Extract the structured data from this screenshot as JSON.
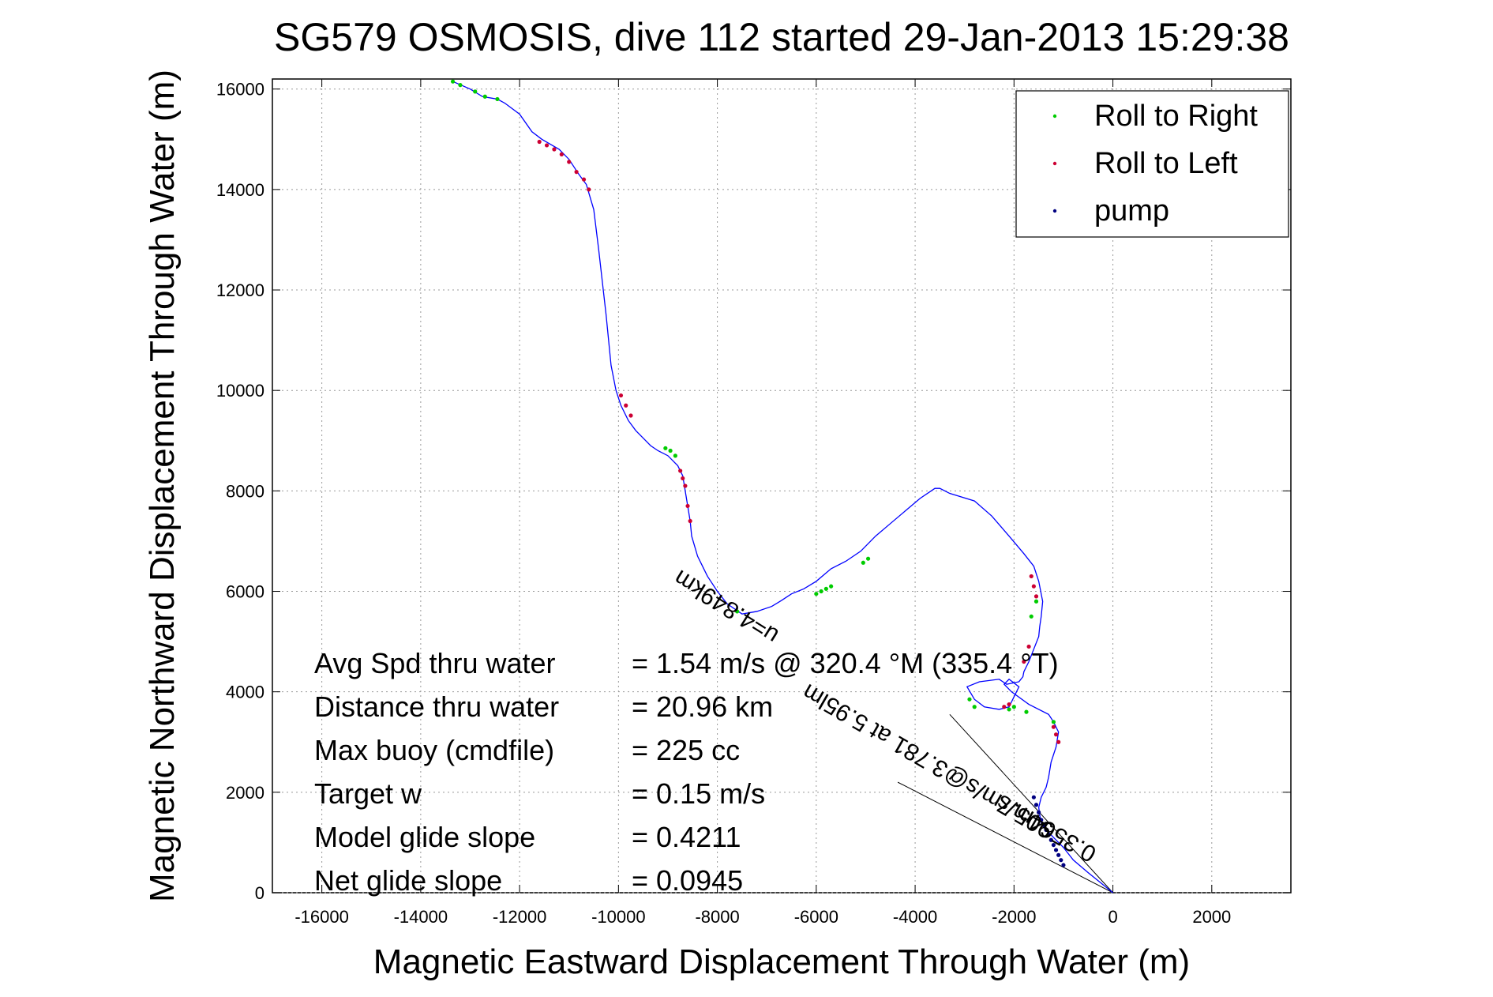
{
  "chart_data": {
    "type": "line",
    "title": "SG579 OSMOSIS, dive 112 started 29-Jan-2013 15:29:38",
    "xlabel": "Magnetic Eastward Displacement Through Water (m)",
    "ylabel": "Magnetic Northward Displacement Through Water (m)",
    "xlim": [
      -17000,
      3600
    ],
    "ylim": [
      0,
      16200
    ],
    "xticks": [
      -16000,
      -14000,
      -12000,
      -10000,
      -8000,
      -6000,
      -4000,
      -2000,
      0,
      2000
    ],
    "yticks": [
      0,
      2000,
      4000,
      6000,
      8000,
      10000,
      12000,
      14000,
      16000
    ],
    "grid": true,
    "legend_position": "top-right",
    "colors": {
      "track": "#0000ff",
      "roll_right": "#00cc00",
      "roll_left": "#cc0033",
      "pump": "#000080",
      "reference_lines": "#000000"
    },
    "series": [
      {
        "name": "track",
        "x": [
          -13350,
          -13000,
          -12750,
          -12450,
          -12300,
          -12000,
          -11750,
          -11550,
          -11200,
          -11000,
          -10800,
          -10650,
          -10500,
          -10400,
          -10250,
          -10150,
          -10050,
          -9950,
          -9800,
          -9650,
          -9500,
          -9350,
          -9200,
          -9000,
          -8800,
          -8700,
          -8650,
          -8600,
          -8550,
          -8520,
          -8400,
          -8200,
          -8000,
          -7800,
          -7500,
          -7200,
          -6900,
          -6700,
          -6500,
          -6250,
          -6000,
          -5700,
          -5400,
          -5100,
          -4800,
          -4500,
          -4200,
          -3900,
          -3600,
          -3500,
          -3300,
          -2800,
          -2450,
          -2100,
          -1800,
          -1600,
          -1500,
          -1420,
          -1450,
          -1480,
          -1500,
          -1620,
          -1700,
          -1800,
          -1820,
          -1900,
          -2150,
          -2300,
          -2700,
          -2950,
          -2800,
          -2600,
          -2300,
          -2100,
          -2000,
          -1900,
          -2100,
          -2200,
          -2050,
          -1700,
          -1300,
          -1200,
          -1100,
          -1150,
          -1250,
          -1300,
          -1350,
          -1450,
          -1500,
          -1480,
          -1450,
          -1400,
          -1200,
          -1000,
          -800,
          -500,
          -250,
          0
        ],
        "y": [
          16150,
          16000,
          15850,
          15800,
          15720,
          15500,
          15150,
          15000,
          14800,
          14600,
          14300,
          14100,
          13600,
          12800,
          11500,
          10500,
          10000,
          9700,
          9400,
          9200,
          9050,
          8900,
          8800,
          8700,
          8500,
          8300,
          8000,
          7700,
          7400,
          7100,
          6700,
          6300,
          6000,
          5750,
          5550,
          5600,
          5700,
          5820,
          5950,
          6050,
          6200,
          6450,
          6600,
          6800,
          7100,
          7350,
          7600,
          7850,
          8050,
          8050,
          7950,
          7800,
          7500,
          7100,
          6750,
          6500,
          6200,
          5800,
          5500,
          5300,
          5100,
          4800,
          4600,
          4400,
          4300,
          4200,
          4150,
          4250,
          4200,
          4100,
          3850,
          3700,
          3650,
          3700,
          3900,
          4100,
          4250,
          4150,
          4000,
          3750,
          3550,
          3400,
          3200,
          2900,
          2600,
          2300,
          2100,
          1900,
          1700,
          1550,
          1400,
          1300,
          1100,
          900,
          650,
          400,
          200,
          0
        ]
      },
      {
        "name": "Roll to Right",
        "x": [
          -13350,
          -13200,
          -12900,
          -12700,
          -12450,
          -9050,
          -8950,
          -8850,
          -6000,
          -5900,
          -5800,
          -5700,
          -5050,
          -4950,
          -2900,
          -2800,
          -2100,
          -2000,
          -1650,
          -1550,
          -1750,
          -1200,
          -7600
        ],
        "y": [
          16150,
          16080,
          15950,
          15850,
          15800,
          8850,
          8800,
          8700,
          5950,
          6000,
          6050,
          6100,
          6570,
          6650,
          3850,
          3700,
          3650,
          3700,
          5500,
          5800,
          3600,
          3400,
          5600
        ]
      },
      {
        "name": "Roll to Left",
        "x": [
          -11600,
          -11450,
          -11300,
          -11150,
          -11000,
          -10850,
          -10700,
          -10600,
          -9950,
          -9850,
          -9750,
          -8750,
          -8700,
          -8650,
          -8600,
          -8550,
          -1650,
          -1600,
          -1550,
          -1700,
          -1800,
          -1200,
          -1150,
          -1100,
          -2200,
          -2100
        ],
        "y": [
          14950,
          14880,
          14800,
          14700,
          14550,
          14350,
          14200,
          14000,
          9900,
          9700,
          9500,
          8400,
          8250,
          8100,
          7700,
          7400,
          6300,
          6100,
          5900,
          4900,
          4600,
          3300,
          3150,
          3000,
          3700,
          3750
        ]
      },
      {
        "name": "pump",
        "x": [
          -1600,
          -1550,
          -1500,
          -1450,
          -1400,
          -1350,
          -1300,
          -1250,
          -1200,
          -1150,
          -1100,
          -1050,
          -1000
        ],
        "y": [
          1900,
          1750,
          1600,
          1450,
          1350,
          1250,
          1150,
          1050,
          950,
          850,
          750,
          650,
          550
        ]
      }
    ],
    "reference_lines": [
      {
        "x": [
          -3300,
          0
        ],
        "y": [
          3550,
          0
        ]
      },
      {
        "x": [
          -4350,
          0
        ],
        "y": [
          2200,
          0
        ]
      }
    ],
    "legend": [
      {
        "label": "Roll to Right",
        "color": "#00cc00"
      },
      {
        "label": "Roll to Left",
        "color": "#cc0033"
      },
      {
        "label": "pump",
        "color": "#000080"
      }
    ],
    "annotations": {
      "diagonal_top": "Avg Spd thru water = 1.54 m/s @ 320.4 °M (335.4 °T)",
      "diag_a": "u=4.849km",
      "diag_b": "905.7m/s@3.781 at 5.95lm",
      "diag_c": "0.3564m/s"
    },
    "stats": [
      {
        "label": "Avg Spd thru water",
        "value": "=  1.54 m/s @ 320.4 °M (335.4 °T)"
      },
      {
        "label": "Distance thru water",
        "value": "= 20.96 km"
      },
      {
        "label": "Max buoy (cmdfile)",
        "value": "= 225 cc"
      },
      {
        "label": "Target w",
        "value": "= 0.15 m/s"
      },
      {
        "label": "Model glide slope",
        "value": "= 0.4211"
      },
      {
        "label": "Net glide slope",
        "value": "= 0.0945"
      }
    ]
  }
}
